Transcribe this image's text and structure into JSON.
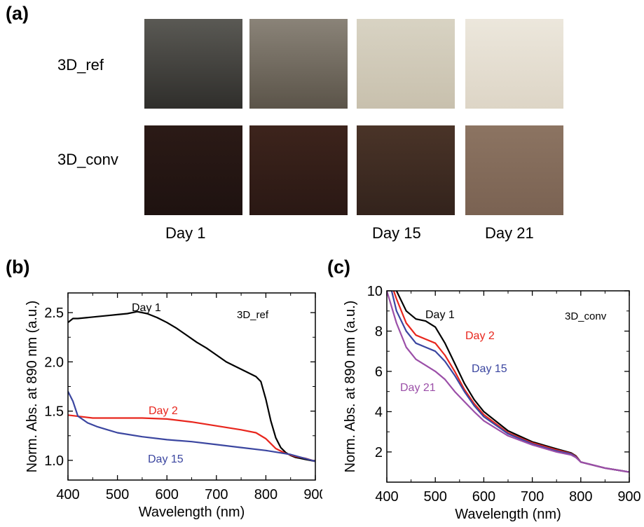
{
  "panel_a": {
    "label": "(a)",
    "rows": [
      {
        "label": "3D_ref",
        "tiles": [
          {
            "color_top": "#5a5954",
            "color_bottom": "#2f2e2b"
          },
          {
            "color_top": "#8a8378",
            "color_bottom": "#5b5449"
          },
          {
            "color_top": "#d8d3c3",
            "color_bottom": "#c8c0ad"
          },
          {
            "color_top": "#ece7dc",
            "color_bottom": "#ddd5c6"
          }
        ]
      },
      {
        "label": "3D_conv",
        "tiles": [
          {
            "color_top": "#2b1a16",
            "color_bottom": "#1e1210"
          },
          {
            "color_top": "#3d241c",
            "color_bottom": "#2a1814"
          },
          {
            "color_top": "#4a3428",
            "color_bottom": "#33231c"
          },
          {
            "color_top": "#8c7462",
            "color_bottom": "#7a6252"
          }
        ]
      }
    ],
    "day_labels": [
      "Day 1",
      "",
      "Day 15",
      "Day 21"
    ]
  },
  "chart_data": [
    {
      "panel": "(b)",
      "type": "line",
      "xlabel": "Wavelength (nm)",
      "ylabel": "Norm. Abs. at 890 nm (a.u.)",
      "xlim": [
        400,
        900
      ],
      "ylim": [
        0.8,
        2.7
      ],
      "xticks": [
        400,
        500,
        600,
        700,
        800,
        900
      ],
      "yticks": [
        1.0,
        1.5,
        2.0,
        2.5
      ],
      "ytick_labels": [
        "1.0",
        "1.5",
        "2.0",
        "2.5"
      ],
      "annotation": "3D_ref",
      "series": [
        {
          "name": "Day 1",
          "color": "#000000",
          "x": [
            400,
            410,
            420,
            440,
            460,
            480,
            500,
            520,
            540,
            560,
            580,
            600,
            620,
            640,
            660,
            680,
            700,
            720,
            740,
            760,
            780,
            790,
            800,
            810,
            820,
            830,
            840,
            850,
            860,
            870,
            880,
            890,
            900
          ],
          "y": [
            2.4,
            2.44,
            2.44,
            2.45,
            2.46,
            2.47,
            2.48,
            2.49,
            2.51,
            2.49,
            2.45,
            2.4,
            2.34,
            2.27,
            2.2,
            2.14,
            2.07,
            2.0,
            1.95,
            1.9,
            1.85,
            1.8,
            1.62,
            1.4,
            1.23,
            1.13,
            1.08,
            1.05,
            1.03,
            1.02,
            1.01,
            1.0,
            0.99
          ]
        },
        {
          "name": "Day 2",
          "color": "#e8261d",
          "x": [
            400,
            450,
            500,
            550,
            600,
            650,
            700,
            750,
            780,
            800,
            820,
            840,
            860,
            880,
            900
          ],
          "y": [
            1.46,
            1.43,
            1.43,
            1.43,
            1.42,
            1.39,
            1.35,
            1.31,
            1.28,
            1.22,
            1.12,
            1.07,
            1.04,
            1.02,
            0.99
          ]
        },
        {
          "name": "Day 15",
          "color": "#3b46a0",
          "x": [
            400,
            410,
            420,
            440,
            460,
            480,
            500,
            550,
            600,
            650,
            700,
            750,
            800,
            850,
            900
          ],
          "y": [
            1.7,
            1.6,
            1.45,
            1.38,
            1.34,
            1.31,
            1.28,
            1.24,
            1.21,
            1.19,
            1.16,
            1.13,
            1.1,
            1.06,
            0.99
          ]
        }
      ]
    },
    {
      "panel": "(c)",
      "type": "line",
      "xlabel": "Wavelength (nm)",
      "ylabel": "Norm. Abs. at 890 nm (a.u.)",
      "xlim": [
        400,
        900
      ],
      "ylim": [
        0.5,
        10
      ],
      "xticks": [
        400,
        500,
        600,
        700,
        800,
        900
      ],
      "yticks": [
        2,
        4,
        6,
        8,
        10
      ],
      "ytick_labels": [
        "2",
        "4",
        "6",
        "8",
        "10"
      ],
      "annotation": "3D_conv",
      "series": [
        {
          "name": "Day 1",
          "color": "#000000",
          "x": [
            400,
            420,
            440,
            460,
            480,
            500,
            520,
            540,
            560,
            580,
            600,
            650,
            700,
            750,
            780,
            790,
            800,
            850,
            900
          ],
          "y": [
            11.0,
            10.0,
            9.0,
            8.6,
            8.5,
            8.2,
            7.4,
            6.4,
            5.4,
            4.6,
            4.0,
            3.05,
            2.5,
            2.15,
            1.95,
            1.8,
            1.5,
            1.2,
            1.0
          ]
        },
        {
          "name": "Day 2",
          "color": "#e8261d",
          "x": [
            400,
            420,
            440,
            460,
            480,
            500,
            520,
            540,
            560,
            580,
            600,
            650,
            700,
            750,
            780,
            790,
            800,
            850,
            900
          ],
          "y": [
            11.0,
            9.6,
            8.4,
            7.8,
            7.6,
            7.4,
            6.8,
            6.0,
            5.1,
            4.4,
            3.85,
            2.95,
            2.45,
            2.1,
            1.92,
            1.78,
            1.5,
            1.2,
            1.0
          ]
        },
        {
          "name": "Day 15",
          "color": "#3b46a0",
          "x": [
            400,
            420,
            440,
            460,
            480,
            500,
            520,
            540,
            560,
            580,
            600,
            650,
            700,
            750,
            780,
            790,
            800,
            850,
            900
          ],
          "y": [
            11.0,
            9.0,
            8.0,
            7.4,
            7.2,
            7.0,
            6.5,
            5.8,
            5.0,
            4.3,
            3.75,
            2.9,
            2.4,
            2.05,
            1.9,
            1.75,
            1.5,
            1.2,
            1.0
          ]
        },
        {
          "name": "Day 21",
          "color": "#9b4fa8",
          "x": [
            400,
            420,
            440,
            460,
            480,
            500,
            520,
            540,
            560,
            580,
            600,
            650,
            700,
            750,
            780,
            790,
            800,
            850,
            900
          ],
          "y": [
            10.0,
            8.4,
            7.2,
            6.6,
            6.3,
            6.0,
            5.6,
            5.0,
            4.5,
            4.0,
            3.55,
            2.8,
            2.35,
            2.0,
            1.85,
            1.72,
            1.5,
            1.2,
            1.0
          ]
        }
      ]
    }
  ]
}
